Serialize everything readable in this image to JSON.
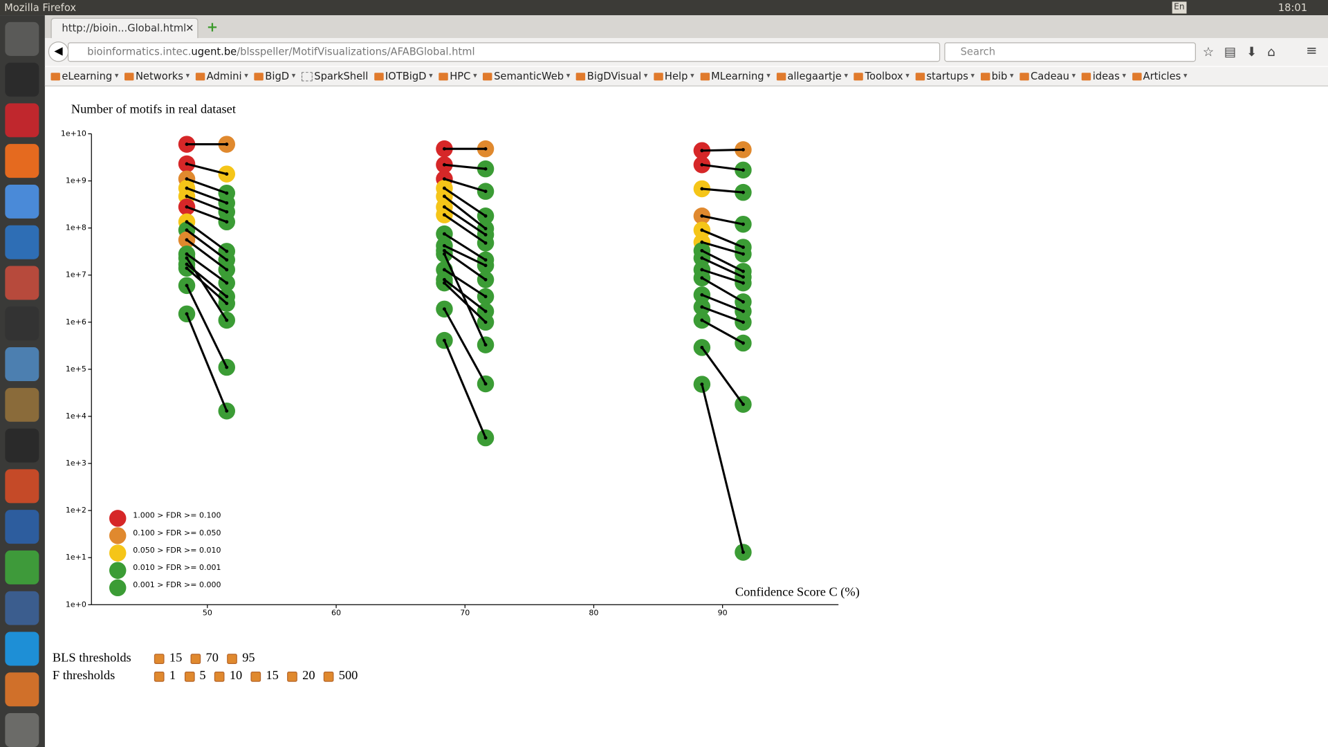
{
  "window_title": "Mozilla Firefox",
  "panel": {
    "keyboard": "En",
    "clock": "18:01"
  },
  "tab": {
    "title": "http://bioin...Global.html"
  },
  "address": {
    "host_start": "bioinformatics.intec.",
    "domain": "ugent.be",
    "path": "/blsspeller/MotifVisualizations/AFABGlobal.html",
    "search_placeholder": "Search"
  },
  "bookmarks": [
    "eLearning",
    "Networks",
    "Admini",
    "BigD",
    "SparkShell",
    "IOTBigD",
    "HPC",
    "SemanticWeb",
    "BigDVisual",
    "Help",
    "MLearning",
    "allegaartje",
    "Toolbox",
    "startups",
    "bib",
    "Cadeau",
    "ideas",
    "Articles"
  ],
  "chart_data": {
    "type": "scatter",
    "title": "Number of motifs in real dataset",
    "xlabel": "Confidence Score C (%)",
    "xlim": [
      41,
      99
    ],
    "xticks": [
      50,
      60,
      70,
      80,
      90
    ],
    "ylim": [
      1,
      10000000000.0
    ],
    "log_y": true,
    "yticks": [
      {
        "value": 1,
        "label": "1e+0"
      },
      {
        "value": 10,
        "label": "1e+1"
      },
      {
        "value": 100,
        "label": "1e+2"
      },
      {
        "value": 1000,
        "label": "1e+3"
      },
      {
        "value": 10000,
        "label": "1e+4"
      },
      {
        "value": 100000,
        "label": "1e+5"
      },
      {
        "value": 1000000,
        "label": "1e+6"
      },
      {
        "value": 10000000,
        "label": "1e+7"
      },
      {
        "value": 100000000,
        "label": "1e+8"
      },
      {
        "value": 1000000000,
        "label": "1e+9"
      },
      {
        "value": 10000000000,
        "label": "1e+10"
      }
    ],
    "line_color": "#000000",
    "legend": [
      {
        "label": "1.000 > FDR >= 0.100",
        "color": "#d62728"
      },
      {
        "label": "0.100 > FDR >= 0.050",
        "color": "#e0892e"
      },
      {
        "label": "0.050 > FDR >= 0.010",
        "color": "#f5c518"
      },
      {
        "label": "0.010 > FDR >= 0.001",
        "color": "#3b9c35"
      },
      {
        "label": "0.001 > FDR >= 0.000",
        "color": "#3b9c35"
      }
    ],
    "series": [
      {
        "x": [
          48.4,
          51.5
        ],
        "values": [
          6000000000.0,
          6000000000.0
        ],
        "colors": [
          "#d62728",
          "#e0892e"
        ]
      },
      {
        "x": [
          48.4,
          51.5
        ],
        "values": [
          2300000000.0,
          1400000000.0
        ],
        "colors": [
          "#d62728",
          "#f5c518"
        ]
      },
      {
        "x": [
          48.4,
          51.5
        ],
        "values": [
          1100000000.0,
          550000000.0
        ],
        "colors": [
          "#e0892e",
          "#3b9c35"
        ]
      },
      {
        "x": [
          48.4,
          51.5
        ],
        "values": [
          700000000.0,
          340000000.0
        ],
        "colors": [
          "#f5c518",
          "#3b9c35"
        ]
      },
      {
        "x": [
          48.4,
          51.5
        ],
        "values": [
          470000000.0,
          220000000.0
        ],
        "colors": [
          "#f5c518",
          "#3b9c35"
        ]
      },
      {
        "x": [
          48.4,
          51.5
        ],
        "values": [
          280000000.0,
          135000000.0
        ],
        "colors": [
          "#d62728",
          "#3b9c35"
        ]
      },
      {
        "x": [
          48.4,
          51.5
        ],
        "values": [
          135000000.0,
          32000000.0
        ],
        "colors": [
          "#f5c518",
          "#3b9c35"
        ]
      },
      {
        "x": [
          48.4,
          51.5
        ],
        "values": [
          90000000.0,
          21000000.0
        ],
        "colors": [
          "#3b9c35",
          "#3b9c35"
        ]
      },
      {
        "x": [
          48.4,
          51.5
        ],
        "values": [
          56000000.0,
          13000000.0
        ],
        "colors": [
          "#e0892e",
          "#3b9c35"
        ]
      },
      {
        "x": [
          48.4,
          51.5
        ],
        "values": [
          28000000.0,
          6800000.0
        ],
        "colors": [
          "#3b9c35",
          "#3b9c35"
        ]
      },
      {
        "x": [
          48.4,
          51.5
        ],
        "values": [
          23000000.0,
          1100000.0
        ],
        "colors": [
          "#3b9c35",
          "#3b9c35"
        ]
      },
      {
        "x": [
          48.4,
          51.5
        ],
        "values": [
          17000000.0,
          3500000.0
        ],
        "colors": [
          "#3b9c35",
          "#3b9c35"
        ]
      },
      {
        "x": [
          48.4,
          51.5
        ],
        "values": [
          14000000.0,
          2500000.0
        ],
        "colors": [
          "#3b9c35",
          "#3b9c35"
        ]
      },
      {
        "x": [
          48.4,
          51.5
        ],
        "values": [
          6000000.0,
          110000.0
        ],
        "colors": [
          "#3b9c35",
          "#3b9c35"
        ]
      },
      {
        "x": [
          48.4,
          51.5
        ],
        "values": [
          1500000.0,
          13000.0
        ],
        "colors": [
          "#3b9c35",
          "#3b9c35"
        ]
      },
      {
        "x": [
          68.4,
          71.6
        ],
        "values": [
          4800000000.0,
          4800000000.0
        ],
        "colors": [
          "#d62728",
          "#e0892e"
        ]
      },
      {
        "x": [
          68.4,
          71.6
        ],
        "values": [
          2200000000.0,
          1800000000.0
        ],
        "colors": [
          "#d62728",
          "#3b9c35"
        ]
      },
      {
        "x": [
          68.4,
          71.6
        ],
        "values": [
          1100000000.0,
          600000000.0
        ],
        "colors": [
          "#d62728",
          "#3b9c35"
        ]
      },
      {
        "x": [
          68.4,
          71.6
        ],
        "values": [
          700000000.0,
          180000000.0
        ],
        "colors": [
          "#f5c518",
          "#3b9c35"
        ]
      },
      {
        "x": [
          68.4,
          71.6
        ],
        "values": [
          470000000.0,
          97000000.0
        ],
        "colors": [
          "#f5c518",
          "#3b9c35"
        ]
      },
      {
        "x": [
          68.4,
          71.6
        ],
        "values": [
          280000000.0,
          72000000.0
        ],
        "colors": [
          "#f5c518",
          "#3b9c35"
        ]
      },
      {
        "x": [
          68.4,
          71.6
        ],
        "values": [
          190000000.0,
          48000000.0
        ],
        "colors": [
          "#f5c518",
          "#3b9c35"
        ]
      },
      {
        "x": [
          68.4,
          71.6
        ],
        "values": [
          75000000.0,
          21000000.0
        ],
        "colors": [
          "#3b9c35",
          "#3b9c35"
        ]
      },
      {
        "x": [
          68.4,
          71.6
        ],
        "values": [
          42000000.0,
          16000000.0
        ],
        "colors": [
          "#3b9c35",
          "#3b9c35"
        ]
      },
      {
        "x": [
          68.4,
          71.6
        ],
        "values": [
          33000000.0,
          8000000.0
        ],
        "colors": [
          "#3b9c35",
          "#3b9c35"
        ]
      },
      {
        "x": [
          68.4,
          71.6
        ],
        "values": [
          28000000.0,
          330000.0
        ],
        "colors": [
          "#3b9c35",
          "#3b9c35"
        ]
      },
      {
        "x": [
          68.4,
          71.6
        ],
        "values": [
          13000000.0,
          3500000.0
        ],
        "colors": [
          "#3b9c35",
          "#3b9c35"
        ]
      },
      {
        "x": [
          68.4,
          71.6
        ],
        "values": [
          8000000.0,
          1700000.0
        ],
        "colors": [
          "#3b9c35",
          "#3b9c35"
        ]
      },
      {
        "x": [
          68.4,
          71.6
        ],
        "values": [
          6800000.0,
          1000000.0
        ],
        "colors": [
          "#3b9c35",
          "#3b9c35"
        ]
      },
      {
        "x": [
          68.4,
          71.6
        ],
        "values": [
          1900000.0,
          49000.0
        ],
        "colors": [
          "#3b9c35",
          "#3b9c35"
        ]
      },
      {
        "x": [
          68.4,
          71.6
        ],
        "values": [
          410000.0,
          3500.0
        ],
        "colors": [
          "#3b9c35",
          "#3b9c35"
        ]
      },
      {
        "x": [
          88.4,
          91.6
        ],
        "values": [
          4400000000.0,
          4600000000.0
        ],
        "colors": [
          "#d62728",
          "#e0892e"
        ]
      },
      {
        "x": [
          88.4,
          91.6
        ],
        "values": [
          2200000000.0,
          1700000000.0
        ],
        "colors": [
          "#d62728",
          "#3b9c35"
        ]
      },
      {
        "x": [
          88.4,
          91.6
        ],
        "values": [
          680000000.0,
          570000000.0
        ],
        "colors": [
          "#f5c518",
          "#3b9c35"
        ]
      },
      {
        "x": [
          88.4,
          91.6
        ],
        "values": [
          180000000.0,
          120000000.0
        ],
        "colors": [
          "#e0892e",
          "#3b9c35"
        ]
      },
      {
        "x": [
          88.4,
          91.6
        ],
        "values": [
          90000000.0,
          39000000.0
        ],
        "colors": [
          "#f5c518",
          "#3b9c35"
        ]
      },
      {
        "x": [
          88.4,
          91.6
        ],
        "values": [
          50000000.0,
          28000000.0
        ],
        "colors": [
          "#f5c518",
          "#3b9c35"
        ]
      },
      {
        "x": [
          88.4,
          91.6
        ],
        "values": [
          33000000.0,
          12000000.0
        ],
        "colors": [
          "#3b9c35",
          "#3b9c35"
        ]
      },
      {
        "x": [
          88.4,
          91.6
        ],
        "values": [
          23000000.0,
          9100000.0
        ],
        "colors": [
          "#3b9c35",
          "#3b9c35"
        ]
      },
      {
        "x": [
          88.4,
          91.6
        ],
        "values": [
          13000000.0,
          6800000.0
        ],
        "colors": [
          "#3b9c35",
          "#3b9c35"
        ]
      },
      {
        "x": [
          88.4,
          91.6
        ],
        "values": [
          8700000.0,
          2700000.0
        ],
        "colors": [
          "#3b9c35",
          "#3b9c35"
        ]
      },
      {
        "x": [
          88.4,
          91.6
        ],
        "values": [
          3800000.0,
          1700000.0
        ],
        "colors": [
          "#3b9c35",
          "#3b9c35"
        ]
      },
      {
        "x": [
          88.4,
          91.6
        ],
        "values": [
          2100000.0,
          1000000.0
        ],
        "colors": [
          "#3b9c35",
          "#3b9c35"
        ]
      },
      {
        "x": [
          88.4,
          91.6
        ],
        "values": [
          1100000.0,
          360000.0
        ],
        "colors": [
          "#3b9c35",
          "#3b9c35"
        ]
      },
      {
        "x": [
          88.4,
          91.6
        ],
        "values": [
          290000.0,
          18000.0
        ],
        "colors": [
          "#3b9c35",
          "#3b9c35"
        ]
      },
      {
        "x": [
          88.4,
          91.6
        ],
        "values": [
          48000.0,
          13
        ],
        "colors": [
          "#3b9c35",
          "#3b9c35"
        ]
      }
    ]
  },
  "controls": {
    "bls_label": "BLS thresholds",
    "bls": [
      15,
      70,
      95
    ],
    "f_label": "F thresholds",
    "f": [
      1,
      5,
      10,
      15,
      20,
      500
    ]
  }
}
